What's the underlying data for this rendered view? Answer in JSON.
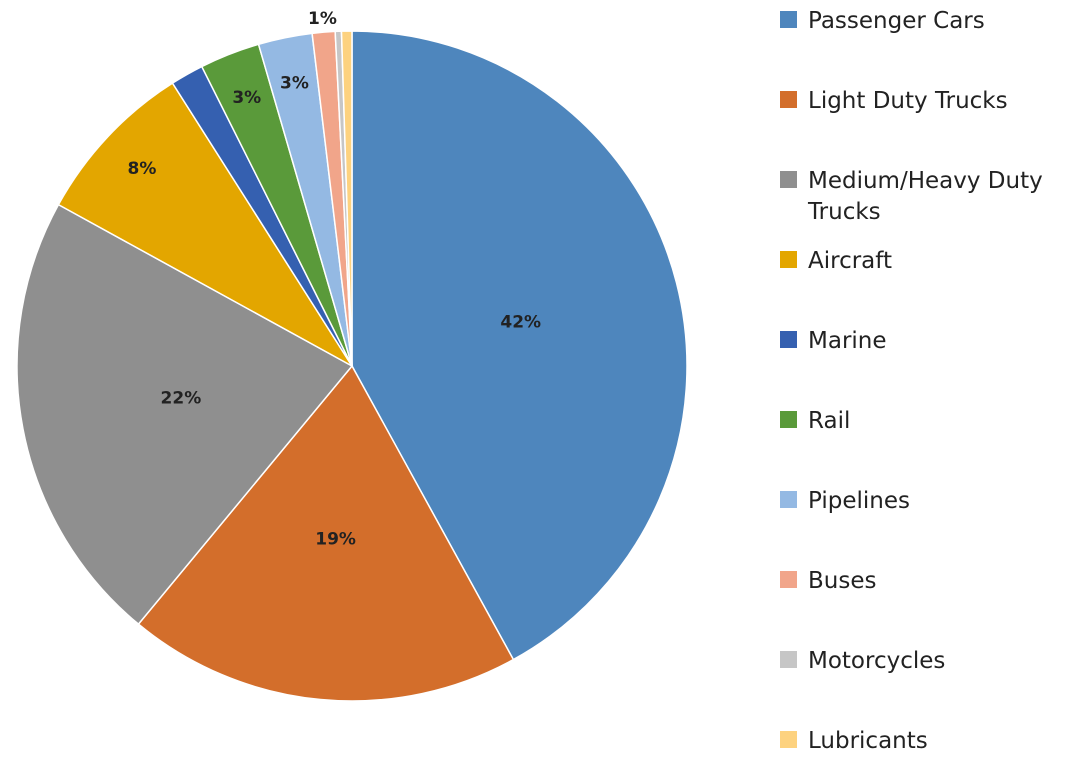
{
  "chart_data": {
    "type": "pie",
    "categories": [
      "Passenger Cars",
      "Light Duty Trucks",
      "Medium/Heavy Duty Trucks",
      "Aircraft",
      "Marine",
      "Rail",
      "Pipelines",
      "Buses",
      "Motorcycles",
      "Lubricants"
    ],
    "values": [
      42,
      19,
      22,
      8,
      1.6,
      2.9,
      2.6,
      1.1,
      0.3,
      0.5
    ],
    "value_labels": [
      "42%",
      "19%",
      "22%",
      "8%",
      null,
      "3%",
      "3%",
      "1%",
      null,
      null
    ],
    "colors": [
      "#4e86bd",
      "#d36e2b",
      "#8f8f8f",
      "#e3a600",
      "#3560b0",
      "#5a9a3a",
      "#94b9e3",
      "#f1a58a",
      "#c6c6c6",
      "#fdd27f"
    ],
    "legend": "right"
  }
}
